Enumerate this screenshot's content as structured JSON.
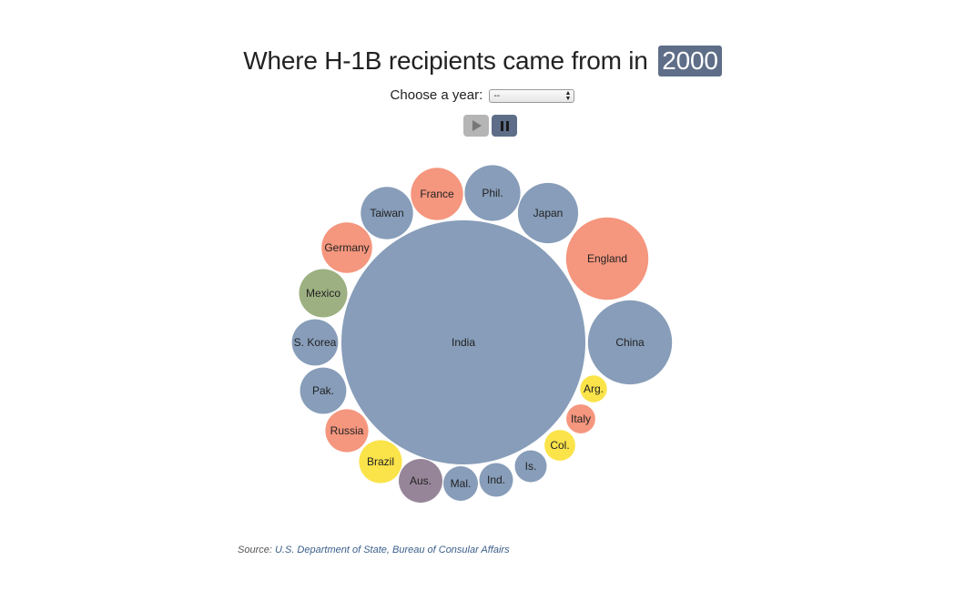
{
  "header": {
    "title_prefix": "Where H-1B recipients came from in",
    "year": "2000"
  },
  "controls": {
    "choose_label": "Choose a year:",
    "select_value": "--"
  },
  "buttons": {
    "play_icon": "play-icon",
    "pause_icon": "pause-icon"
  },
  "source": {
    "label": "Source:",
    "link_text": "U.S. Department of State, Bureau of Consular Affairs"
  },
  "colors": {
    "blue": "#879db9",
    "salmon": "#f5967e",
    "green": "#9db081",
    "yellow": "#fbe34a",
    "purple": "#968598",
    "accent": "#5e6e88"
  },
  "chart_data": {
    "type": "bubble",
    "title": "Where H-1B recipients came from in 2000",
    "relative_size_note": "circle area proportional to number of recipients",
    "bubbles": [
      {
        "label": "India",
        "color": "blue",
        "value": 1000
      },
      {
        "label": "China",
        "color": "blue",
        "value": 119
      },
      {
        "label": "England",
        "color": "salmon",
        "value": 114
      },
      {
        "label": "Japan",
        "color": "blue",
        "value": 61
      },
      {
        "label": "Phil.",
        "color": "blue",
        "value": 52
      },
      {
        "label": "France",
        "color": "salmon",
        "value": 46
      },
      {
        "label": "Taiwan",
        "color": "blue",
        "value": 46
      },
      {
        "label": "Germany",
        "color": "salmon",
        "value": 43
      },
      {
        "label": "Mexico",
        "color": "green",
        "value": 39
      },
      {
        "label": "S. Korea",
        "color": "blue",
        "value": 36
      },
      {
        "label": "Pak.",
        "color": "blue",
        "value": 36
      },
      {
        "label": "Russia",
        "color": "salmon",
        "value": 31
      },
      {
        "label": "Brazil",
        "color": "yellow",
        "value": 31
      },
      {
        "label": "Aus.",
        "color": "purple",
        "value": 32
      },
      {
        "label": "Mal.",
        "color": "blue",
        "value": 20
      },
      {
        "label": "Ind.",
        "color": "blue",
        "value": 19
      },
      {
        "label": "Is.",
        "color": "blue",
        "value": 17
      },
      {
        "label": "Col.",
        "color": "yellow",
        "value": 16
      },
      {
        "label": "Italy",
        "color": "salmon",
        "value": 14
      },
      {
        "label": "Arg.",
        "color": "yellow",
        "value": 12
      }
    ]
  }
}
